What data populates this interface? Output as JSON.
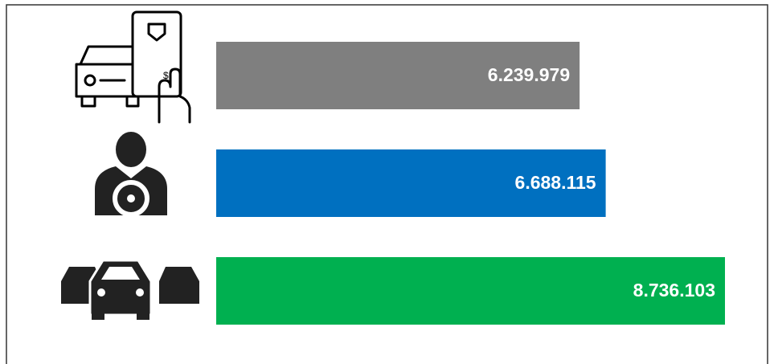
{
  "chart_data": {
    "type": "barh",
    "values": [
      6239979,
      6688115,
      8736103
    ],
    "value_labels": [
      "6.239.979",
      "6.688.115",
      "8.736.103"
    ],
    "colors": [
      "#7f7f7f",
      "#0070c0",
      "#00b050"
    ]
  }
}
